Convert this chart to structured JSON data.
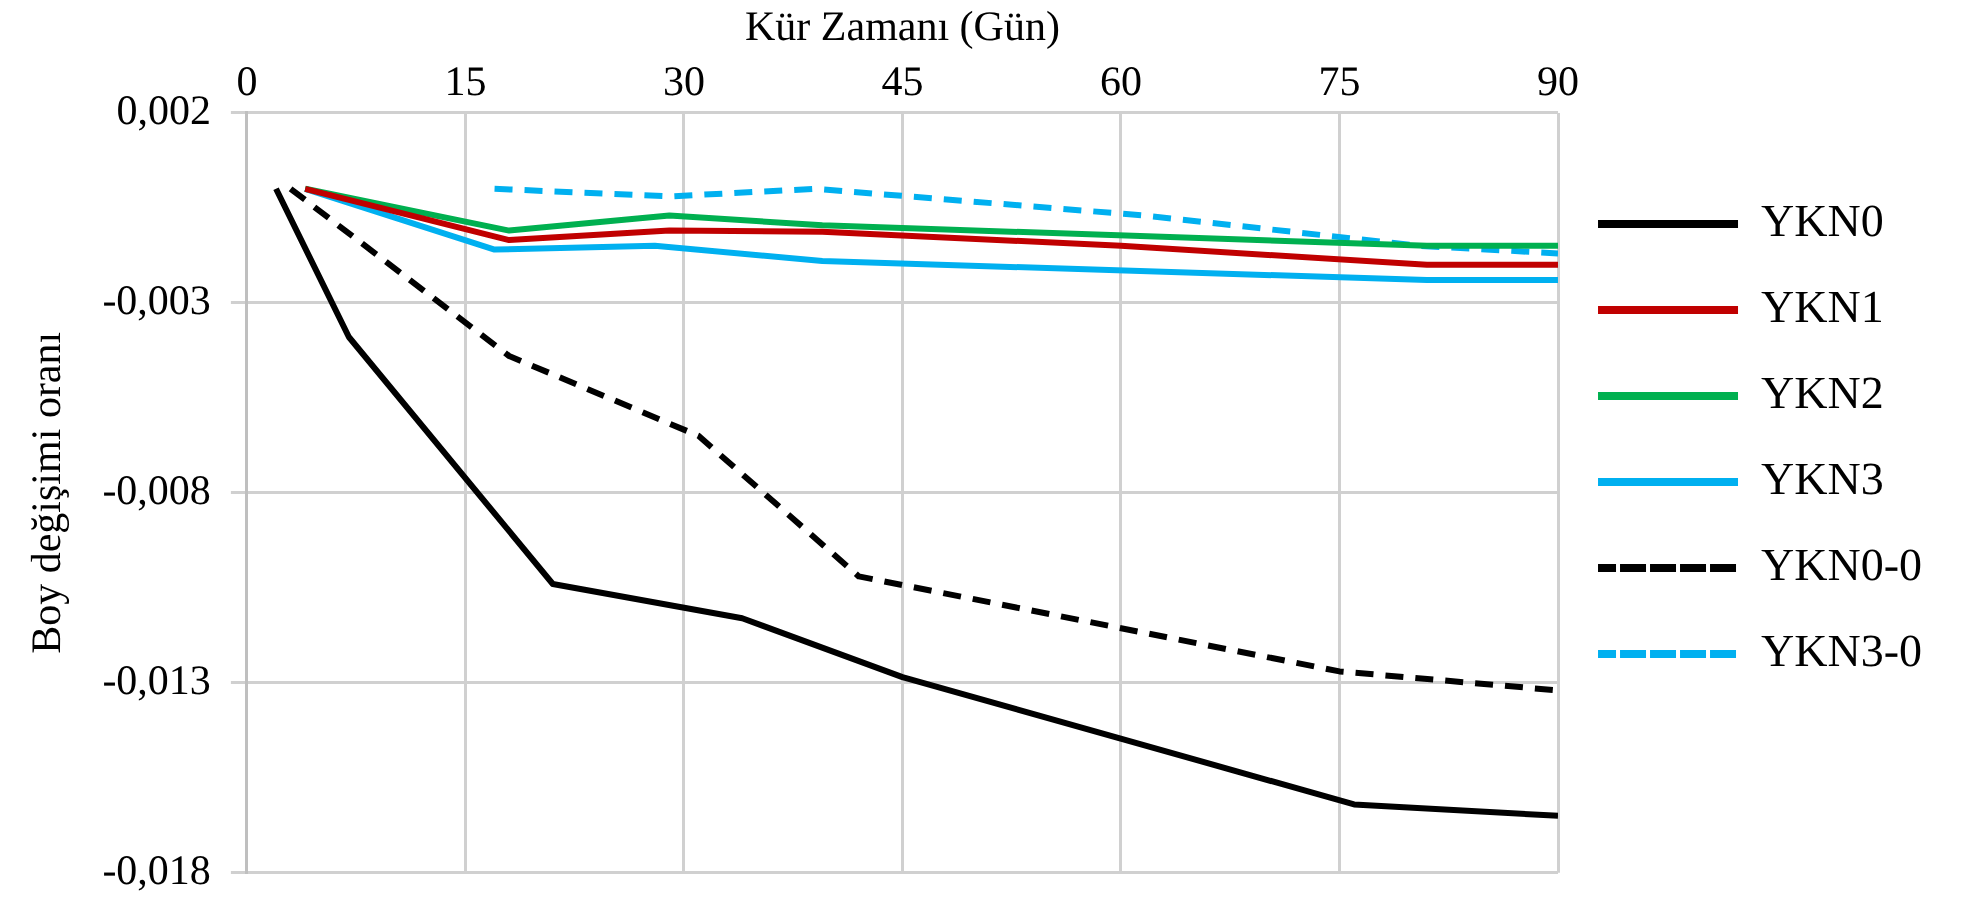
{
  "chart_data": {
    "type": "line",
    "xlabel": "Kür Zamanı (Gün)",
    "ylabel": "Boy değişimi oranı",
    "xlim": [
      0,
      90
    ],
    "xticks": [
      0,
      15,
      30,
      45,
      60,
      75,
      90
    ],
    "ylim": [
      -0.018,
      0.002
    ],
    "yticks": [
      {
        "value": -0.018,
        "label": "-0,018"
      },
      {
        "value": -0.013,
        "label": "-0,013"
      },
      {
        "value": -0.008,
        "label": "-0,008"
      },
      {
        "value": -0.003,
        "label": "-0,003"
      },
      {
        "value": 0.002,
        "label": "0,002"
      }
    ],
    "grid": true,
    "legend": "right",
    "marker": "none",
    "series": [
      {
        "name": "YKN0",
        "color": "#000000",
        "line_style": "solid",
        "x": [
          2,
          7,
          21,
          34,
          45,
          76,
          90
        ],
        "values": [
          0,
          -0.0039,
          -0.0104,
          -0.0113,
          -0.01285,
          -0.0162,
          -0.0165
        ]
      },
      {
        "name": "YKN1",
        "color": "#c00000",
        "line_style": "solid",
        "x": [
          4,
          18,
          29,
          39.5,
          60,
          81,
          90
        ],
        "values": [
          0,
          -0.00135,
          -0.0011,
          -0.00113,
          -0.0015,
          -0.002,
          -0.002
        ]
      },
      {
        "name": "YKN2",
        "color": "#00b050",
        "line_style": "solid",
        "x": [
          4,
          18,
          29,
          39.5,
          81,
          90
        ],
        "values": [
          0,
          -0.0011,
          -0.0007,
          -0.00096,
          -0.0015,
          -0.0015
        ]
      },
      {
        "name": "YKN3",
        "color": "#00b0f0",
        "line_style": "solid",
        "x": [
          4,
          17,
          28,
          39.5,
          81,
          90
        ],
        "values": [
          0,
          -0.0016,
          -0.0015,
          -0.0019,
          -0.0024,
          -0.0024
        ]
      },
      {
        "name": "YKN0-0",
        "color": "#000000",
        "line_style": "dashed",
        "x": [
          3,
          18,
          31,
          42,
          75,
          90
        ],
        "values": [
          0,
          -0.0044,
          -0.0065,
          -0.0102,
          -0.0127,
          -0.0132
        ]
      },
      {
        "name": "YKN3-0",
        "color": "#00b0f0",
        "line_style": "dashed",
        "x": [
          17,
          29,
          39,
          61.5,
          80.5,
          90
        ],
        "values": [
          0,
          -0.0002,
          0,
          -0.0007,
          -0.0015,
          -0.0017
        ]
      }
    ]
  }
}
